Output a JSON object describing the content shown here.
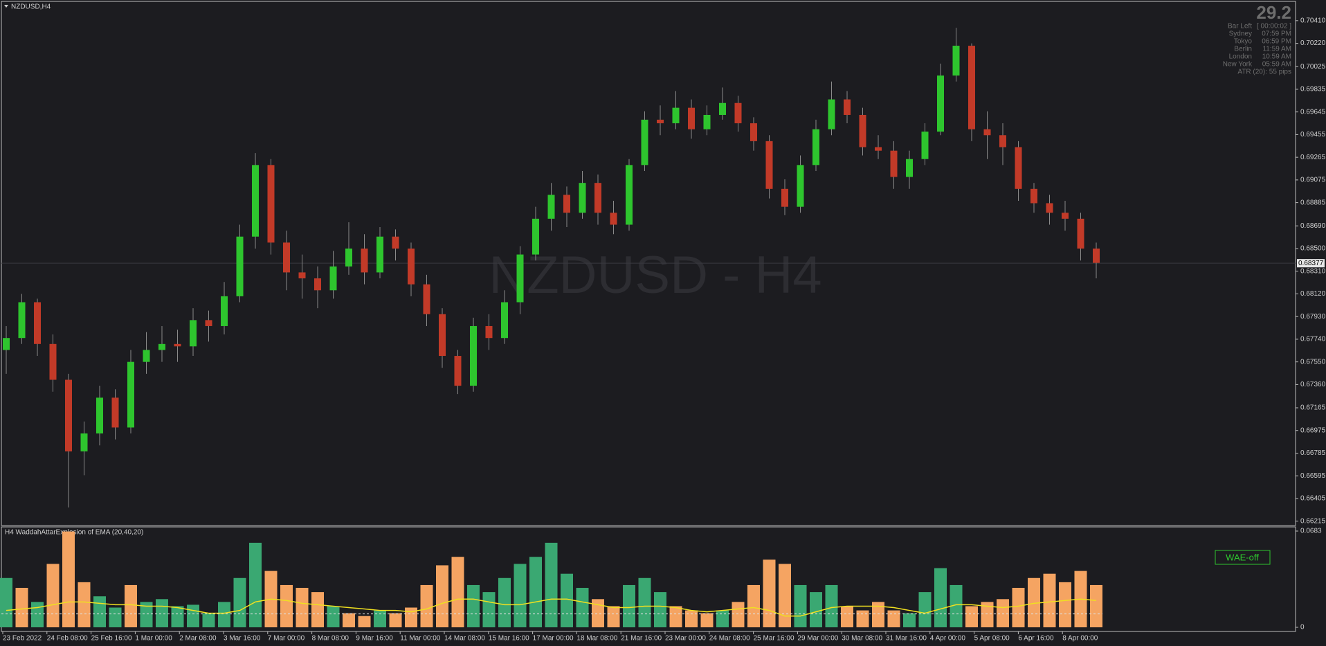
{
  "symbol_label": "NZDUSD,H4",
  "watermark": "NZDUSD - H4",
  "info": {
    "spread": "29.2",
    "rows": [
      [
        "Bar Left",
        "[ 00:00:02 ]"
      ],
      [
        "Sydney",
        "07:59 PM"
      ],
      [
        "Tokyo",
        "06:59 PM"
      ],
      [
        "Berlin",
        "11:59 AM"
      ],
      [
        "London",
        "10:59 AM"
      ],
      [
        "New York",
        "05:59 AM"
      ]
    ],
    "atr": "ATR (20): 55 pips"
  },
  "button": "WAE-off",
  "time_labels": [
    "23 Feb 2022",
    "24 Feb 08:00",
    "25 Feb 16:00",
    "1 Mar 00:00",
    "2 Mar 08:00",
    "3 Mar 16:00",
    "7 Mar 00:00",
    "8 Mar 08:00",
    "9 Mar 16:00",
    "11 Mar 00:00",
    "14 Mar 08:00",
    "15 Mar 16:00",
    "17 Mar 00:00",
    "18 Mar 08:00",
    "21 Mar 16:00",
    "23 Mar 00:00",
    "24 Mar 08:00",
    "25 Mar 16:00",
    "29 Mar 00:00",
    "30 Mar 08:00",
    "31 Mar 16:00",
    "4 Apr 00:00",
    "5 Apr 08:00",
    "6 Apr 16:00",
    "8 Apr 00:00"
  ],
  "chart_data": [
    {
      "type": "candlestick",
      "up_color": "#2ec52e",
      "down_color": "#c23a28",
      "open": [
        0.6765,
        0.6775,
        0.6805,
        0.677,
        0.674,
        0.668,
        0.6695,
        0.6725,
        0.67,
        0.6755,
        0.6765,
        0.677,
        0.6768,
        0.679,
        0.6785,
        0.681,
        0.686,
        0.692,
        0.6855,
        0.683,
        0.6825,
        0.6815,
        0.6835,
        0.685,
        0.683,
        0.686,
        0.685,
        0.682,
        0.6795,
        0.676,
        0.6735,
        0.6785,
        0.6775,
        0.6805,
        0.6845,
        0.6875,
        0.6895,
        0.688,
        0.6905,
        0.688,
        0.687,
        0.692,
        0.6958,
        0.6955,
        0.6968,
        0.695,
        0.6962,
        0.6972,
        0.6955,
        0.694,
        0.69,
        0.6885,
        0.692,
        0.695,
        0.6975,
        0.6962,
        0.6935,
        0.6932,
        0.691,
        0.6925,
        0.6948,
        0.6995,
        0.702,
        0.695,
        0.6945,
        0.6935,
        0.69,
        0.6888,
        0.688,
        0.6875,
        0.685
      ],
      "high": [
        0.6785,
        0.6812,
        0.6808,
        0.6778,
        0.6745,
        0.6705,
        0.6735,
        0.6732,
        0.6765,
        0.678,
        0.6785,
        0.6782,
        0.68,
        0.6798,
        0.6822,
        0.687,
        0.693,
        0.6925,
        0.6865,
        0.6845,
        0.6835,
        0.6848,
        0.6872,
        0.6862,
        0.6868,
        0.6866,
        0.6855,
        0.6828,
        0.68,
        0.6765,
        0.6792,
        0.6795,
        0.6815,
        0.6852,
        0.6885,
        0.6905,
        0.6902,
        0.6915,
        0.6912,
        0.689,
        0.6925,
        0.6965,
        0.697,
        0.6982,
        0.6975,
        0.697,
        0.6985,
        0.6978,
        0.696,
        0.6945,
        0.6908,
        0.6928,
        0.6958,
        0.699,
        0.6982,
        0.6968,
        0.6945,
        0.694,
        0.6932,
        0.6955,
        0.7005,
        0.7035,
        0.7022,
        0.6965,
        0.6955,
        0.694,
        0.6905,
        0.6895,
        0.689,
        0.688,
        0.6855
      ],
      "low": [
        0.6745,
        0.677,
        0.676,
        0.673,
        0.6633,
        0.666,
        0.6685,
        0.669,
        0.6695,
        0.6745,
        0.6755,
        0.6755,
        0.676,
        0.6772,
        0.6778,
        0.6805,
        0.685,
        0.6845,
        0.6815,
        0.6808,
        0.68,
        0.6808,
        0.6828,
        0.682,
        0.6825,
        0.684,
        0.681,
        0.6785,
        0.675,
        0.6728,
        0.673,
        0.6765,
        0.677,
        0.6795,
        0.684,
        0.6865,
        0.6868,
        0.6875,
        0.687,
        0.6862,
        0.6865,
        0.6915,
        0.6945,
        0.695,
        0.6942,
        0.6945,
        0.6958,
        0.6948,
        0.6932,
        0.6892,
        0.6878,
        0.688,
        0.6915,
        0.6945,
        0.6955,
        0.6928,
        0.6925,
        0.69,
        0.69,
        0.692,
        0.6945,
        0.699,
        0.694,
        0.6925,
        0.692,
        0.689,
        0.688,
        0.687,
        0.6865,
        0.684,
        0.6825
      ],
      "close": [
        0.6775,
        0.6805,
        0.677,
        0.674,
        0.668,
        0.6695,
        0.6725,
        0.67,
        0.6755,
        0.6765,
        0.677,
        0.6768,
        0.679,
        0.6785,
        0.681,
        0.686,
        0.692,
        0.6855,
        0.683,
        0.6825,
        0.6815,
        0.6835,
        0.685,
        0.683,
        0.686,
        0.685,
        0.682,
        0.6795,
        0.676,
        0.6735,
        0.6785,
        0.6775,
        0.6805,
        0.6845,
        0.6875,
        0.6895,
        0.688,
        0.6905,
        0.688,
        0.687,
        0.692,
        0.6958,
        0.6955,
        0.6968,
        0.695,
        0.6962,
        0.6972,
        0.6955,
        0.694,
        0.69,
        0.6885,
        0.692,
        0.695,
        0.6975,
        0.6962,
        0.6935,
        0.6932,
        0.691,
        0.6925,
        0.6948,
        0.6995,
        0.702,
        0.695,
        0.6945,
        0.6935,
        0.69,
        0.6888,
        0.688,
        0.6875,
        0.685,
        0.6838
      ],
      "ylim": [
        0.6619,
        0.7056
      ],
      "yticks": [
        {
          "value": 0.7041,
          "label": "0.70410"
        },
        {
          "value": 0.7022,
          "label": "0.70220"
        },
        0.70025,
        0.69835,
        0.69645,
        0.69455,
        0.69265,
        0.69075,
        0.68885,
        {
          "value": 0.6869,
          "label": "0.68690"
        },
        {
          "value": 0.685,
          "label": "0.68500"
        },
        {
          "value": 0.6831,
          "label": "0.68310"
        },
        {
          "value": 0.6812,
          "label": "0.68120"
        },
        {
          "value": 0.6793,
          "label": "0.67930"
        },
        {
          "value": 0.6774,
          "label": "0.67740"
        },
        {
          "value": 0.6755,
          "label": "0.67550"
        },
        {
          "value": 0.6736,
          "label": "0.67360"
        },
        0.67165,
        0.66975,
        0.66785,
        0.66595,
        0.66405,
        0.66215
      ],
      "current_price": 0.68377
    },
    {
      "type": "bar",
      "title": "H4 WaddahAttarExplosion of EMA (20,40,20)",
      "values": [
        0.035,
        0.028,
        0.018,
        0.045,
        0.068,
        0.032,
        0.022,
        0.014,
        0.03,
        0.018,
        0.02,
        0.015,
        0.016,
        0.01,
        0.018,
        0.035,
        0.06,
        0.04,
        0.03,
        0.028,
        0.025,
        0.015,
        0.01,
        0.008,
        0.012,
        0.01,
        0.014,
        0.03,
        0.044,
        0.05,
        0.03,
        0.025,
        0.035,
        0.045,
        0.05,
        0.06,
        0.038,
        0.028,
        0.02,
        0.015,
        0.03,
        0.035,
        0.025,
        0.015,
        0.012,
        0.01,
        0.012,
        0.018,
        0.03,
        0.048,
        0.045,
        0.03,
        0.025,
        0.03,
        0.015,
        0.012,
        0.018,
        0.012,
        0.01,
        0.025,
        0.042,
        0.03,
        0.015,
        0.018,
        0.02,
        0.028,
        0.035,
        0.038,
        0.032,
        0.04,
        0.03
      ],
      "colors": [
        "#3aa872",
        "#f5a462",
        "#3aa872",
        "#f5a462",
        "#f5a462",
        "#f5a462",
        "#3aa872",
        "#3aa872",
        "#f5a462",
        "#3aa872",
        "#3aa872",
        "#3aa872",
        "#3aa872",
        "#3aa872",
        "#3aa872",
        "#3aa872",
        "#3aa872",
        "#f5a462",
        "#f5a462",
        "#f5a462",
        "#f5a462",
        "#3aa872",
        "#f5a462",
        "#f5a462",
        "#3aa872",
        "#f5a462",
        "#f5a462",
        "#f5a462",
        "#f5a462",
        "#f5a462",
        "#3aa872",
        "#3aa872",
        "#3aa872",
        "#3aa872",
        "#3aa872",
        "#3aa872",
        "#3aa872",
        "#3aa872",
        "#f5a462",
        "#f5a462",
        "#3aa872",
        "#3aa872",
        "#3aa872",
        "#f5a462",
        "#f5a462",
        "#f5a462",
        "#3aa872",
        "#f5a462",
        "#f5a462",
        "#f5a462",
        "#f5a462",
        "#3aa872",
        "#3aa872",
        "#3aa872",
        "#f5a462",
        "#f5a462",
        "#f5a462",
        "#f5a462",
        "#3aa872",
        "#3aa872",
        "#3aa872",
        "#3aa872",
        "#f5a462",
        "#f5a462",
        "#f5a462",
        "#f5a462",
        "#f5a462",
        "#f5a462",
        "#f5a462",
        "#f5a462",
        "#f5a462"
      ],
      "line": {
        "color": "#f0e020",
        "values": [
          0.012,
          0.013,
          0.014,
          0.016,
          0.018,
          0.018,
          0.017,
          0.016,
          0.016,
          0.015,
          0.015,
          0.014,
          0.012,
          0.01,
          0.01,
          0.012,
          0.018,
          0.02,
          0.019,
          0.017,
          0.016,
          0.015,
          0.014,
          0.013,
          0.012,
          0.012,
          0.011,
          0.013,
          0.017,
          0.02,
          0.02,
          0.018,
          0.016,
          0.016,
          0.018,
          0.02,
          0.02,
          0.018,
          0.016,
          0.014,
          0.014,
          0.015,
          0.015,
          0.014,
          0.012,
          0.011,
          0.012,
          0.013,
          0.014,
          0.012,
          0.008,
          0.008,
          0.011,
          0.014,
          0.015,
          0.015,
          0.015,
          0.014,
          0.012,
          0.01,
          0.013,
          0.016,
          0.016,
          0.015,
          0.014,
          0.015,
          0.017,
          0.018,
          0.019,
          0.02,
          0.019
        ]
      },
      "dead_zone": 0.0095,
      "ylim": [
        0,
        0.0683
      ],
      "yticks": [
        0,
        0.0683
      ]
    }
  ]
}
